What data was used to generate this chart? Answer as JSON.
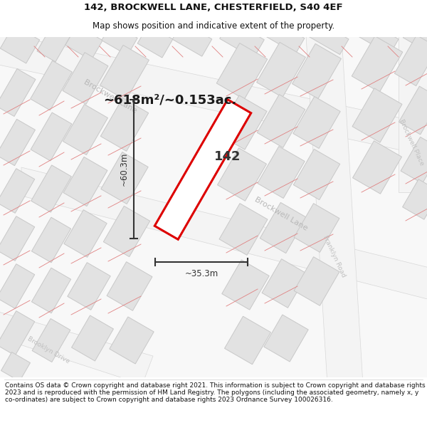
{
  "title": "142, BROCKWELL LANE, CHESTERFIELD, S40 4EF",
  "subtitle": "Map shows position and indicative extent of the property.",
  "area_text": "~618m²/~0.153ac.",
  "property_number": "142",
  "dim_width": "~35.3m",
  "dim_height": "~60.3m",
  "footer_text": "Contains OS data © Crown copyright and database right 2021. This information is subject to Crown copyright and database rights 2023 and is reproduced with the permission of HM Land Registry. The polygons (including the associated geometry, namely x, y co-ordinates) are subject to Crown copyright and database rights 2023 Ordnance Survey 100026316.",
  "map_bg": "#f8f8f8",
  "block_fill": "#e2e2e2",
  "block_edge": "#c8c8c8",
  "road_bg": "#f0f0f0",
  "plot_stroke": "#dd0000",
  "plot_fill": "#ffffff",
  "plot_fill_alpha": 0.7,
  "dim_color": "#333333",
  "street_label_color": "#aaaaaa",
  "title_color": "#111111",
  "footer_color": "#111111",
  "red_line": "#e08080",
  "fig_width": 6.0,
  "fig_height": 6.25,
  "title_fontsize": 9.5,
  "subtitle_fontsize": 8.5,
  "area_fontsize": 13,
  "prop_fontsize": 13,
  "dim_fontsize": 8.5,
  "footer_fontsize": 6.5,
  "street_fontsize": 8.0,
  "small_street_fontsize": 6.5,
  "ang": -30
}
